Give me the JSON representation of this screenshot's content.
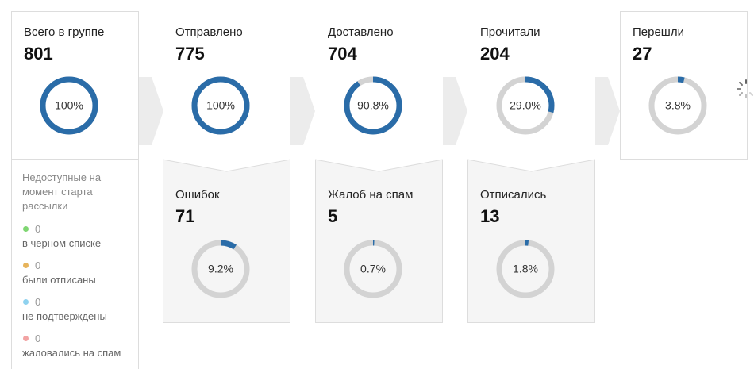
{
  "stages": [
    {
      "title": "Всего в группе",
      "count": 801,
      "percent": 100,
      "percent_label": "100%"
    },
    {
      "title": "Отправлено",
      "count": 775,
      "percent": 100,
      "percent_label": "100%"
    },
    {
      "title": "Доставлено",
      "count": 704,
      "percent": 90.8,
      "percent_label": "90.8%"
    },
    {
      "title": "Прочитали",
      "count": 204,
      "percent": 29.0,
      "percent_label": "29.0%"
    },
    {
      "title": "Перешли",
      "count": 27,
      "percent": 3.8,
      "percent_label": "3.8%"
    }
  ],
  "issues": [
    {
      "title": "Ошибок",
      "count": 71,
      "percent": 9.2,
      "percent_label": "9.2%"
    },
    {
      "title": "Жалоб на спам",
      "count": 5,
      "percent": 0.7,
      "percent_label": "0.7%"
    },
    {
      "title": "Отписались",
      "count": 13,
      "percent": 1.8,
      "percent_label": "1.8%"
    }
  ],
  "unavailable": {
    "title": "Недоступные на момент старта рассылки",
    "items": [
      {
        "count": 0,
        "label": "в черном списке"
      },
      {
        "count": 0,
        "label": "были отписаны"
      },
      {
        "count": 0,
        "label": "не подтверждены"
      },
      {
        "count": 0,
        "label": "жаловались на спам"
      }
    ]
  }
}
